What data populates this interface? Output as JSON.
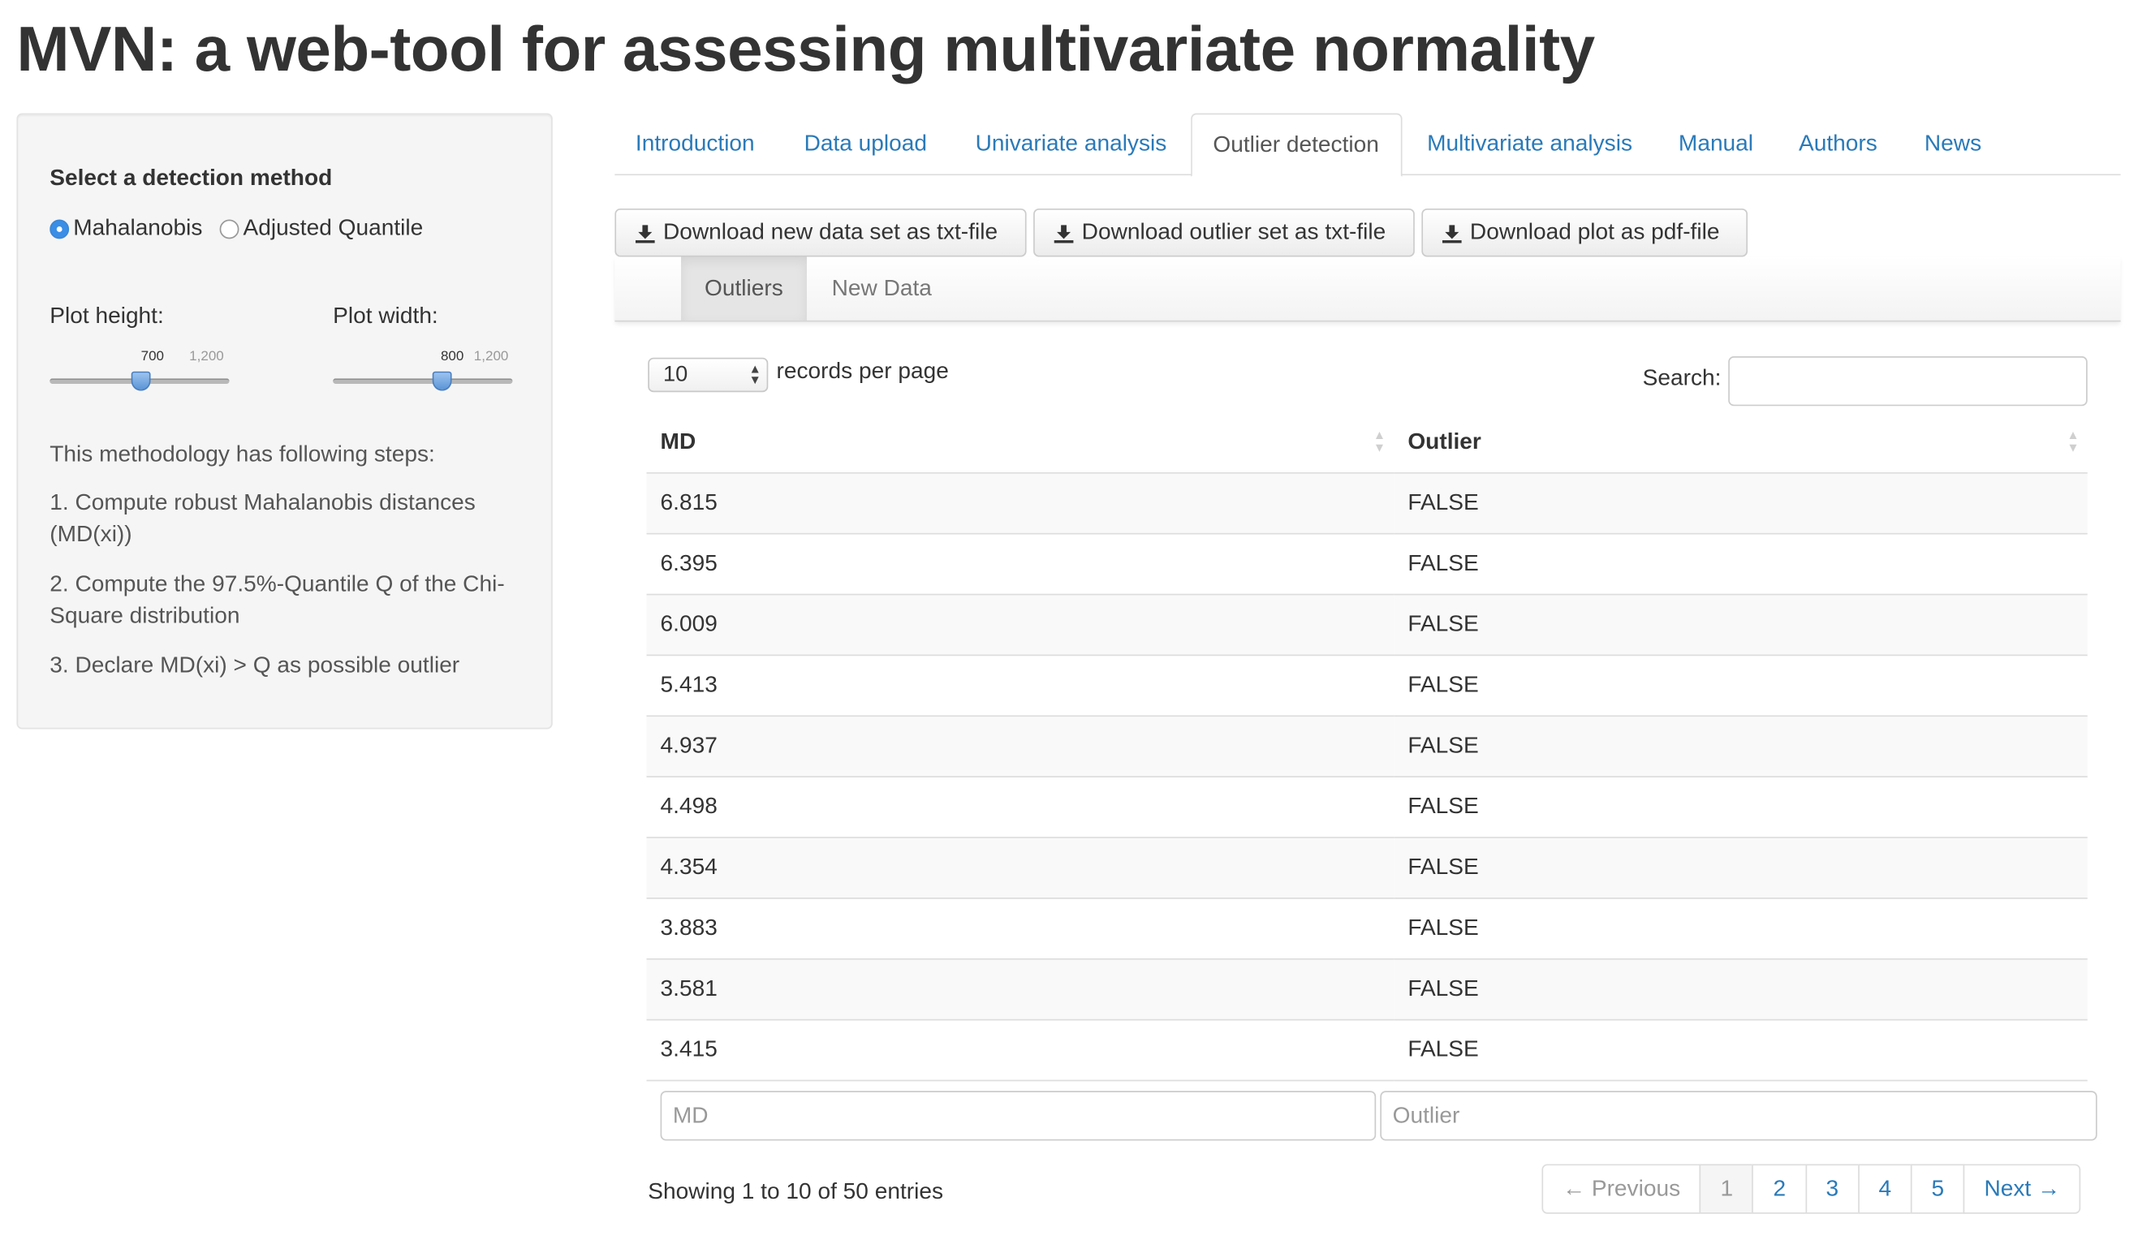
{
  "app": {
    "title": "MVN: a web-tool for assessing multivariate normality"
  },
  "sidebar": {
    "method_label": "Select a detection method",
    "methods": [
      {
        "label": "Mahalanobis",
        "selected": true
      },
      {
        "label": "Adjusted Quantile",
        "selected": false
      }
    ],
    "plot_height": {
      "label": "Plot height:",
      "value": "700",
      "max": "1,200",
      "fraction": 0.583
    },
    "plot_width": {
      "label": "Plot width:",
      "value": "800",
      "max": "1,200",
      "fraction": 0.667
    },
    "intro": "This methodology has following steps:",
    "steps": [
      "1. Compute robust Mahalanobis distances (MD(xi))",
      "2. Compute the 97.5%-Quantile Q of the Chi-Square distribution",
      "3. Declare MD(xi) > Q as possible outlier"
    ]
  },
  "tabs": [
    {
      "label": "Introduction",
      "active": false
    },
    {
      "label": "Data upload",
      "active": false
    },
    {
      "label": "Univariate analysis",
      "active": false
    },
    {
      "label": "Outlier detection",
      "active": true
    },
    {
      "label": "Multivariate analysis",
      "active": false
    },
    {
      "label": "Manual",
      "active": false
    },
    {
      "label": "Authors",
      "active": false
    },
    {
      "label": "News",
      "active": false
    }
  ],
  "downloads": [
    "Download new data set as txt-file",
    "Download outlier set as txt-file",
    "Download plot as pdf-file"
  ],
  "subtabs": [
    {
      "label": "Outliers",
      "active": true
    },
    {
      "label": "New Data",
      "active": false
    }
  ],
  "table": {
    "length_value": "10",
    "length_label": "records per page",
    "search_label": "Search:",
    "search_value": "",
    "columns": [
      "MD",
      "Outlier"
    ],
    "rows": [
      [
        "6.815",
        "FALSE"
      ],
      [
        "6.395",
        "FALSE"
      ],
      [
        "6.009",
        "FALSE"
      ],
      [
        "5.413",
        "FALSE"
      ],
      [
        "4.937",
        "FALSE"
      ],
      [
        "4.498",
        "FALSE"
      ],
      [
        "4.354",
        "FALSE"
      ],
      [
        "3.883",
        "FALSE"
      ],
      [
        "3.581",
        "FALSE"
      ],
      [
        "3.415",
        "FALSE"
      ]
    ],
    "filter_placeholders": [
      "MD",
      "Outlier"
    ],
    "info": "Showing 1 to 10 of 50 entries"
  },
  "pagination": {
    "previous": "← Previous",
    "pages": [
      "1",
      "2",
      "3",
      "4",
      "5"
    ],
    "current": "1",
    "next": "Next →"
  },
  "colors": {
    "link": "#2a7ab9",
    "radio_selected": "#3a8ee6",
    "slider_handle": "#5b95d6"
  }
}
